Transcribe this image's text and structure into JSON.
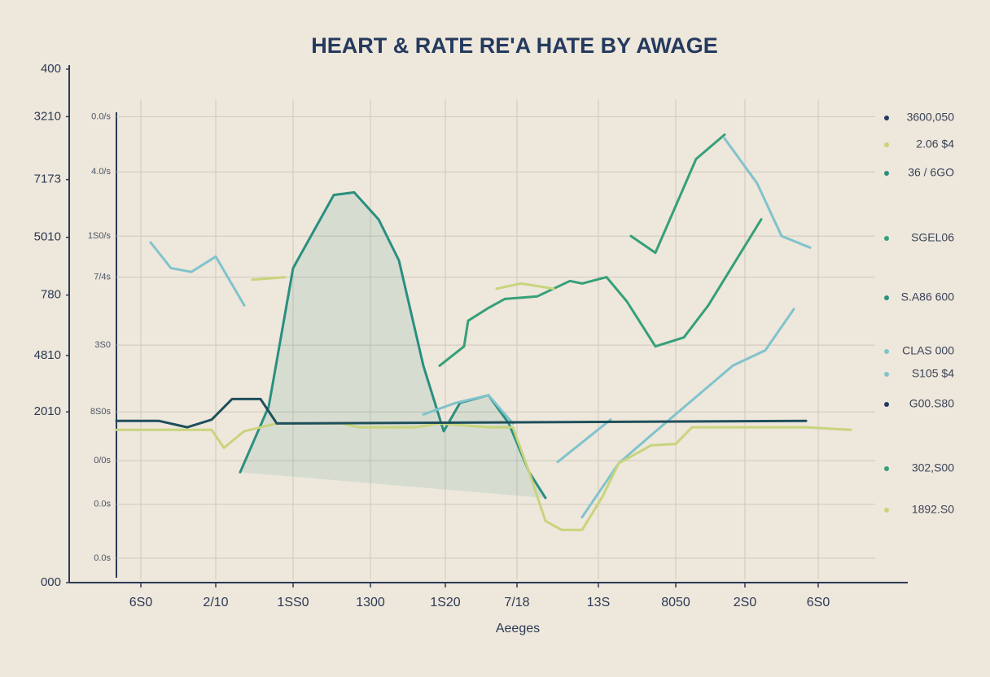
{
  "chart_data": {
    "type": "line",
    "title": "HEART & RATE RE'A HATE BY AWAGE",
    "x_label": "Aeeges",
    "xlim": [
      0,
      103
    ],
    "ylim": [
      0,
      400
    ],
    "y2lim": [
      0,
      400
    ],
    "grid": true,
    "xticks": [
      {
        "value": 8.8,
        "label": "6S0"
      },
      {
        "value": 18,
        "label": "2/10"
      },
      {
        "value": 27.5,
        "label": "1SS0"
      },
      {
        "value": 37,
        "label": "1300"
      },
      {
        "value": 46.2,
        "label": "1S20"
      },
      {
        "value": 55,
        "label": "7/18"
      },
      {
        "value": 65,
        "label": "13S"
      },
      {
        "value": 74.5,
        "label": "8050"
      },
      {
        "value": 83,
        "label": "2S0"
      },
      {
        "value": 92,
        "label": "6S0"
      }
    ],
    "yticks": [
      400,
      {
        "value": 363,
        "label": "3210"
      },
      {
        "value": 314,
        "label": "7173"
      },
      {
        "value": 269,
        "label": "5010"
      },
      {
        "value": 224,
        "label": "780"
      },
      {
        "value": 177,
        "label": "4810"
      },
      {
        "value": 133,
        "label": "2010"
      },
      {
        "value": 0,
        "label": "000"
      }
    ],
    "y2ticks": [
      {
        "value": 363,
        "label": "0.0/s"
      },
      {
        "value": 320,
        "label": "4.0/s"
      },
      {
        "value": 270,
        "label": "1S0/s"
      },
      {
        "value": 238,
        "label": "7/4s"
      },
      {
        "value": 185,
        "label": "3S0"
      },
      {
        "value": 133,
        "label": "8S0s"
      },
      {
        "value": 95,
        "label": "0/0s"
      },
      {
        "value": 61,
        "label": "0.0s"
      },
      {
        "value": 19,
        "label": "0.0s"
      }
    ],
    "series": [
      {
        "color": "#2a8f80",
        "fill": true,
        "x": [
          21,
          24.5,
          27.5,
          32.5,
          35,
          38,
          40.5,
          43.5,
          46,
          48,
          51.5,
          54,
          56.5,
          58.5
        ],
        "values": [
          86,
          137,
          245,
          302,
          304,
          283,
          251,
          169,
          118,
          140,
          146,
          124,
          86,
          66
        ]
      },
      {
        "color": "#35a07a",
        "fill": false,
        "x": [
          45.5,
          48.5,
          49,
          51.5,
          53.5,
          57.5,
          61.5,
          63,
          66,
          68.5,
          72,
          75.5,
          78.5,
          85,
          null,
          69,
          72,
          77,
          80.5
        ],
        "values": [
          169,
          184,
          204,
          214,
          221,
          223,
          235,
          233,
          238,
          219,
          184,
          191,
          216,
          283,
          null,
          270,
          257,
          330,
          349
        ]
      },
      {
        "color": "#80c3cc",
        "fill": false,
        "x": [
          10,
          12.5,
          15,
          18,
          21.5,
          null,
          43.5,
          47.5,
          51.5,
          54.5,
          null,
          60,
          66.5,
          null,
          63,
          67.5,
          71.5,
          81.5,
          85.5,
          89,
          null,
          80.5,
          84.5,
          87.5,
          91
        ],
        "values": [
          265,
          245,
          242,
          254,
          216,
          null,
          131,
          140,
          146,
          124,
          null,
          94,
          127,
          null,
          51,
          93,
          115,
          169,
          181,
          213,
          null,
          346,
          311,
          270,
          261
        ]
      },
      {
        "color": "#c8d47c",
        "fill": false,
        "x": [
          5.8,
          17.5,
          19,
          21.5,
          25.5,
          33.5,
          35.5,
          42.5,
          45.5,
          51.5,
          54.5,
          56.5,
          58.5,
          60.5,
          63,
          65.5,
          67.5,
          71.5,
          74.5,
          76.5,
          90.5,
          96,
          null,
          22.5,
          26.5,
          null,
          52.5,
          55.5,
          59.5
        ],
        "values": [
          119,
          119,
          105,
          118,
          124,
          124,
          121,
          121,
          124,
          121,
          121,
          86,
          48,
          41,
          41,
          67,
          93,
          107,
          108,
          121,
          121,
          119,
          null,
          236,
          238,
          null,
          229,
          233,
          229
        ]
      },
      {
        "color": "#1f4f5c",
        "fill": false,
        "x": [
          5.8,
          11,
          14.5,
          17.5,
          20,
          23.5,
          25.5,
          90.5
        ],
        "values": [
          126,
          126,
          121,
          127,
          143,
          143,
          124,
          126
        ]
      }
    ],
    "annotations": [
      {
        "text": "3600,050",
        "color": "#243a5e"
      },
      {
        "text": "2.06 $4",
        "color": "#c8d47c"
      },
      {
        "text": "36 / 6GO",
        "color": "#2a8f80"
      },
      {
        "text": "SGEL06",
        "color": "#35a07a"
      },
      {
        "text": "S.A86 600",
        "color": "#2a8f80"
      },
      {
        "text": "CLAS 000",
        "color": "#80c3cc"
      },
      {
        "text": "S105 $4",
        "color": "#80c3cc"
      },
      {
        "text": "G00.S80",
        "color": "#243a5e"
      },
      {
        "text": "302,S00",
        "color": "#35a07a"
      },
      {
        "text": "1892.S0",
        "color": "#c8d47c"
      }
    ]
  }
}
